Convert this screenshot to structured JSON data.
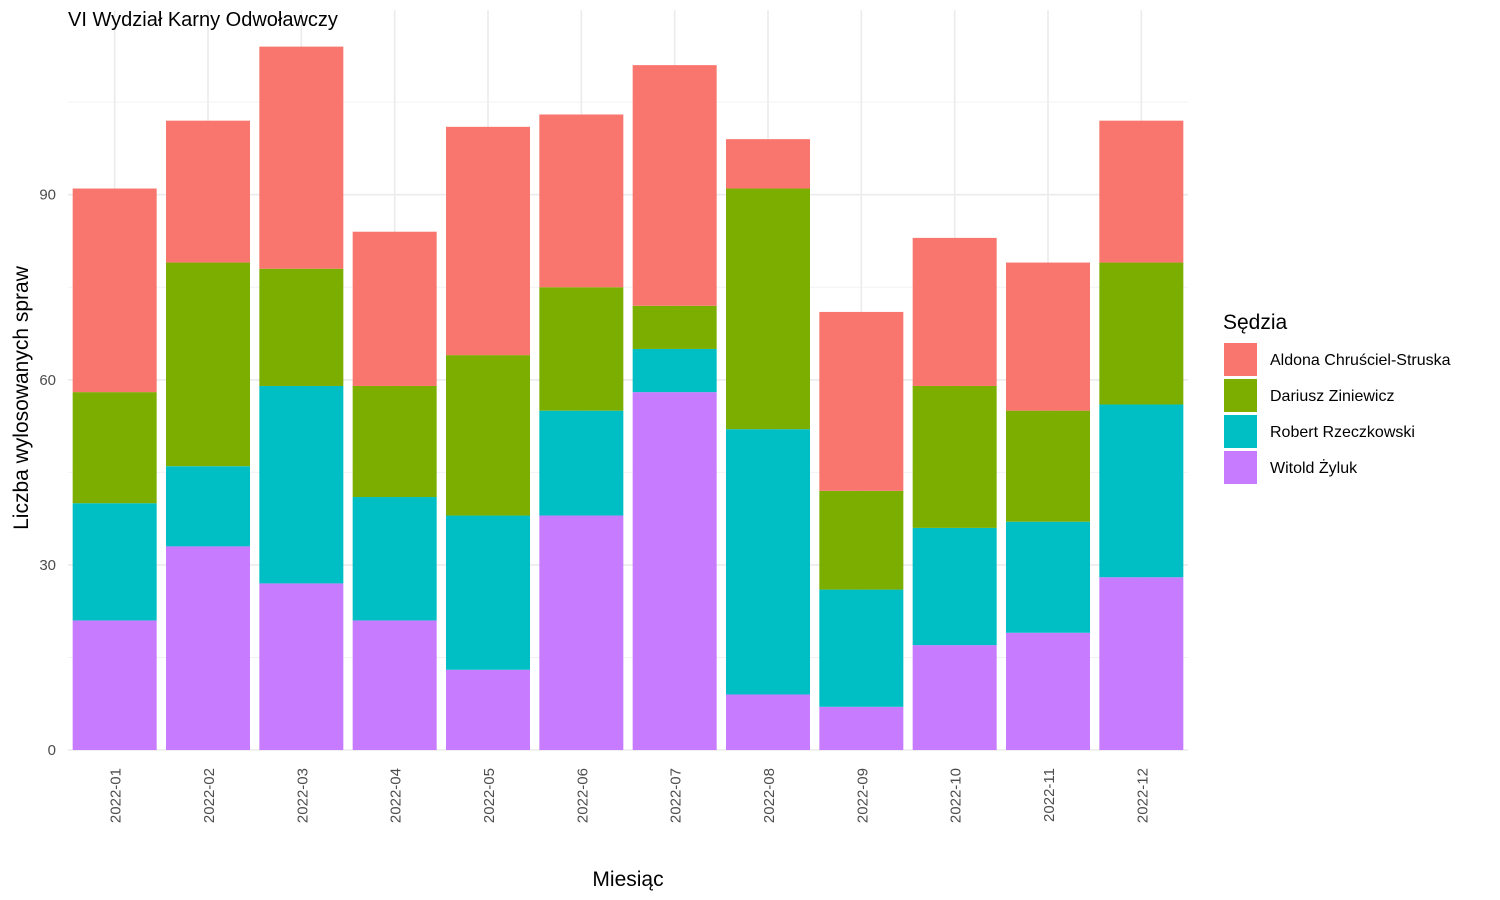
{
  "chart_data": {
    "type": "bar",
    "stacked": true,
    "title": "VI Wydział Karny Odwoławczy",
    "xlabel": "Miesiąc",
    "ylabel": "Liczba wylosowanych spraw",
    "ylim": [
      0,
      122
    ],
    "yticks": [
      0,
      30,
      60,
      90
    ],
    "grid": true,
    "legend_title": "Sędzia",
    "legend_position": "right",
    "categories": [
      "2022-01",
      "2022-02",
      "2022-03",
      "2022-04",
      "2022-05",
      "2022-06",
      "2022-07",
      "2022-08",
      "2022-09",
      "2022-10",
      "2022-11",
      "2022-12"
    ],
    "series": [
      {
        "name": "Witold Żyluk",
        "color": "#C77CFF",
        "values": [
          21,
          33,
          27,
          21,
          13,
          38,
          58,
          9,
          7,
          17,
          19,
          28
        ]
      },
      {
        "name": "Robert Rzeczkowski",
        "color": "#00BFC4",
        "values": [
          19,
          13,
          32,
          20,
          25,
          17,
          7,
          43,
          19,
          19,
          18,
          28
        ]
      },
      {
        "name": "Dariusz Ziniewicz",
        "color": "#7CAE00",
        "values": [
          18,
          33,
          19,
          18,
          26,
          20,
          7,
          39,
          16,
          23,
          18,
          23
        ]
      },
      {
        "name": "Aldona Chruściel-Struska",
        "color": "#F8766D",
        "values": [
          33,
          23,
          36,
          25,
          37,
          28,
          39,
          8,
          29,
          24,
          24,
          23
        ]
      }
    ],
    "legend_order": [
      "Aldona Chruściel-Struska",
      "Dariusz Ziniewicz",
      "Robert Rzeczkowski",
      "Witold Żyluk"
    ]
  }
}
